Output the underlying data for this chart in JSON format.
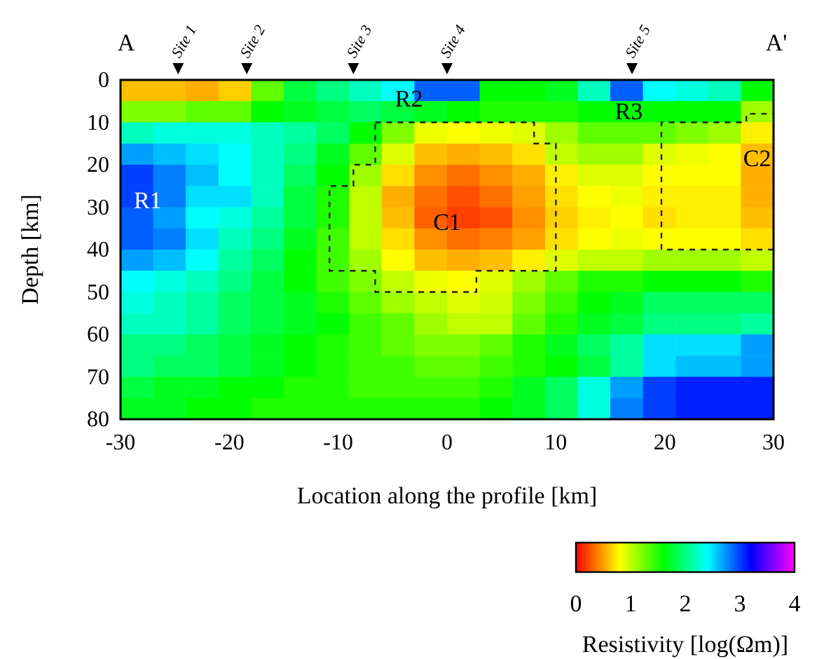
{
  "chart_data": {
    "type": "heatmap",
    "xlabel": "Location along the profile [km]",
    "ylabel": "Depth [km]",
    "clabel": "Resistivity [log(Ωm)]",
    "x": [
      -28.5,
      -25.5,
      -22.5,
      -19.5,
      -16.5,
      -13.5,
      -10.5,
      -7.5,
      -4.5,
      -1.5,
      1.5,
      4.5,
      7.5,
      10.5,
      13.5,
      16.5,
      19.5,
      22.5,
      25.5,
      28.5
    ],
    "xlim": [
      -30,
      30
    ],
    "xticks": [
      -30,
      -20,
      -10,
      0,
      10,
      20,
      30
    ],
    "ylim": [
      80,
      0
    ],
    "yticks": [
      0,
      10,
      20,
      30,
      40,
      50,
      60,
      70,
      80
    ],
    "clim": [
      0,
      4
    ],
    "cticks": [
      0,
      1,
      2,
      3,
      4
    ],
    "cells": [
      [
        0.6,
        0.6,
        0.55,
        0.65,
        1.3,
        1.8,
        2.0,
        2.2,
        2.4,
        2.9,
        2.9,
        1.6,
        1.6,
        1.7,
        2.2,
        2.9,
        2.4,
        2.3,
        2.2,
        1.6
      ],
      [
        1.2,
        1.2,
        1.3,
        1.3,
        1.6,
        1.7,
        1.8,
        1.9,
        1.8,
        1.7,
        1.6,
        1.5,
        1.5,
        1.5,
        1.6,
        1.6,
        1.6,
        1.6,
        1.6,
        1.1
      ],
      [
        2.2,
        2.3,
        2.3,
        2.3,
        2.2,
        2.1,
        1.9,
        1.6,
        1.2,
        0.85,
        0.8,
        0.85,
        0.9,
        1.1,
        1.3,
        1.3,
        1.3,
        1.2,
        1.1,
        0.75
      ],
      [
        2.7,
        2.6,
        2.5,
        2.4,
        2.2,
        2.0,
        1.7,
        1.3,
        0.9,
        0.6,
        0.55,
        0.6,
        0.7,
        1.0,
        1.1,
        1.1,
        0.9,
        0.85,
        0.8,
        0.6
      ],
      [
        3.0,
        2.8,
        2.6,
        2.4,
        2.2,
        1.9,
        1.6,
        1.1,
        0.7,
        0.45,
        0.35,
        0.45,
        0.55,
        0.75,
        0.9,
        0.9,
        0.8,
        0.8,
        0.8,
        0.55
      ],
      [
        3.0,
        2.8,
        2.5,
        2.5,
        2.2,
        1.8,
        1.5,
        1.0,
        0.55,
        0.35,
        0.25,
        0.35,
        0.5,
        0.7,
        0.8,
        0.85,
        0.75,
        0.75,
        0.75,
        0.55
      ],
      [
        2.9,
        2.7,
        2.4,
        2.3,
        2.1,
        1.8,
        1.5,
        1.0,
        0.6,
        0.3,
        0.2,
        0.25,
        0.45,
        0.65,
        0.75,
        0.8,
        0.7,
        0.75,
        0.75,
        0.6
      ],
      [
        2.9,
        2.8,
        2.5,
        2.2,
        2.0,
        1.7,
        1.4,
        1.0,
        0.7,
        0.45,
        0.35,
        0.4,
        0.5,
        0.7,
        0.8,
        0.85,
        0.8,
        0.8,
        0.8,
        0.7
      ],
      [
        2.7,
        2.6,
        2.4,
        2.1,
        1.9,
        1.6,
        1.4,
        1.1,
        0.8,
        0.6,
        0.55,
        0.6,
        0.75,
        0.9,
        1.0,
        1.0,
        1.1,
        1.1,
        1.1,
        1.0
      ],
      [
        2.4,
        2.3,
        2.2,
        2.0,
        1.8,
        1.6,
        1.4,
        1.2,
        1.0,
        0.85,
        0.8,
        0.9,
        1.1,
        1.3,
        1.5,
        1.5,
        1.6,
        1.6,
        1.6,
        1.5
      ],
      [
        2.3,
        2.2,
        2.1,
        1.9,
        1.8,
        1.7,
        1.5,
        1.3,
        1.1,
        1.0,
        0.9,
        0.95,
        1.2,
        1.4,
        1.6,
        1.7,
        1.9,
        1.9,
        1.9,
        1.9
      ],
      [
        2.2,
        2.2,
        2.1,
        1.9,
        1.8,
        1.7,
        1.6,
        1.4,
        1.3,
        1.1,
        1.0,
        1.0,
        1.3,
        1.5,
        1.7,
        1.8,
        2.0,
        2.0,
        2.0,
        2.1
      ],
      [
        2.0,
        2.0,
        1.9,
        1.8,
        1.7,
        1.6,
        1.5,
        1.4,
        1.3,
        1.2,
        1.2,
        1.3,
        1.5,
        1.7,
        1.9,
        2.1,
        2.5,
        2.5,
        2.5,
        2.7
      ],
      [
        2.0,
        1.9,
        1.9,
        1.8,
        1.7,
        1.6,
        1.5,
        1.4,
        1.4,
        1.3,
        1.3,
        1.4,
        1.5,
        1.6,
        1.8,
        2.1,
        2.5,
        2.6,
        2.6,
        2.7
      ],
      [
        1.8,
        1.7,
        1.7,
        1.6,
        1.6,
        1.5,
        1.5,
        1.4,
        1.4,
        1.4,
        1.4,
        1.5,
        1.7,
        1.9,
        2.3,
        2.7,
        3.0,
        3.1,
        3.1,
        3.1
      ],
      [
        1.7,
        1.7,
        1.6,
        1.6,
        1.5,
        1.5,
        1.5,
        1.5,
        1.5,
        1.5,
        1.5,
        1.6,
        1.7,
        1.9,
        2.3,
        2.8,
        3.0,
        3.1,
        3.1,
        3.1
      ]
    ],
    "annotations": [
      "A",
      "A'",
      "Site 1",
      "Site 2",
      "Site 3",
      "Site 4",
      "Site 5",
      "R1",
      "R2",
      "R3",
      "C1",
      "C2"
    ]
  }
}
